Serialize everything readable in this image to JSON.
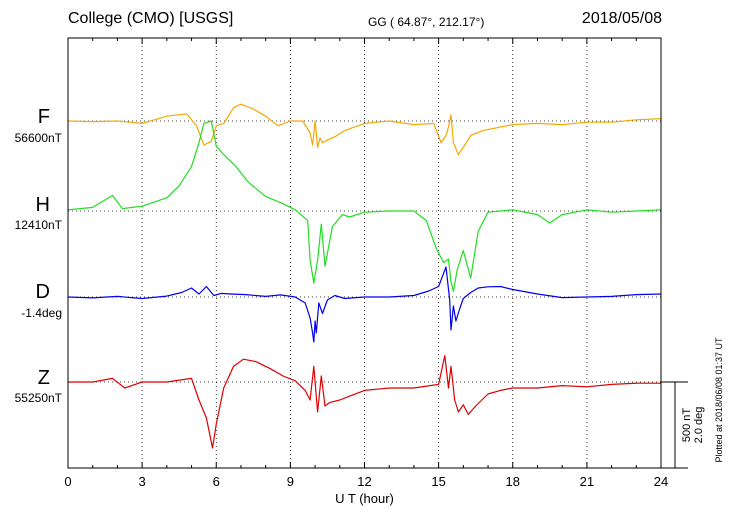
{
  "header": {
    "station": "College (CMO)  [USGS]",
    "coords": "GG ( 64.87°, 212.17°)",
    "date": "2018/05/08"
  },
  "footer": {
    "scale_nt": "500 nT",
    "scale_deg": "2.0 deg",
    "plotted": "Plotted at 2018/06/08 01:37 UT"
  },
  "chart_data": {
    "type": "line",
    "title": "College (CMO)  [USGS]",
    "xlabel": "U T (hour)",
    "ylabel": "",
    "xlim": [
      0,
      24
    ],
    "x_ticks": [
      "0",
      "3",
      "6",
      "9",
      "12",
      "15",
      "18",
      "21",
      "24"
    ],
    "grid": true,
    "scale_bar": "500 nT / 2.0 deg",
    "series": [
      {
        "name": "F",
        "baseline_label": "56600nT",
        "unit": "nT",
        "baseline": 56600,
        "color": "#f5a800",
        "x": [
          0,
          1,
          2,
          3,
          4,
          4.8,
          5.2,
          5.5,
          5.8,
          6.0,
          6.3,
          6.7,
          7.0,
          7.5,
          8.0,
          8.5,
          9.0,
          9.5,
          9.8,
          9.9,
          10.0,
          10.1,
          10.2,
          10.3,
          10.5,
          10.8,
          11.2,
          12,
          13,
          14,
          14.8,
          15.1,
          15.3,
          15.4,
          15.5,
          15.6,
          15.8,
          16.0,
          16.3,
          16.8,
          17.5,
          18,
          19,
          20,
          21,
          22,
          23,
          24
        ],
        "y": [
          56600,
          56595,
          56600,
          56580,
          56640,
          56660,
          56560,
          56400,
          56430,
          56560,
          56580,
          56710,
          56740,
          56700,
          56640,
          56560,
          56600,
          56600,
          56500,
          56400,
          56600,
          56380,
          56460,
          56420,
          56440,
          56470,
          56520,
          56580,
          56600,
          56570,
          56580,
          56420,
          56480,
          56550,
          56650,
          56420,
          56320,
          56380,
          56480,
          56520,
          56550,
          56570,
          56580,
          56570,
          56590,
          56590,
          56610,
          56620
        ]
      },
      {
        "name": "H",
        "baseline_label": "12410nT",
        "unit": "nT",
        "baseline": 12410,
        "color": "#22dd22",
        "x": [
          0,
          1,
          1.8,
          2.2,
          3,
          4,
          4.5,
          5,
          5.3,
          5.5,
          5.8,
          6.0,
          6.3,
          6.8,
          7.3,
          8,
          8.6,
          9.2,
          9.7,
          9.8,
          9.95,
          10.1,
          10.25,
          10.4,
          10.7,
          11.1,
          11.4,
          12,
          13,
          14,
          14.5,
          14.9,
          15.2,
          15.4,
          15.5,
          15.6,
          15.75,
          16.0,
          16.3,
          16.6,
          17,
          17.5,
          18,
          19,
          19.5,
          20,
          21,
          22,
          23,
          24
        ],
        "y": [
          12420,
          12440,
          12540,
          12430,
          12450,
          12520,
          12620,
          12780,
          12980,
          13140,
          13160,
          12950,
          12880,
          12780,
          12650,
          12530,
          12480,
          12420,
          12330,
          12000,
          11810,
          12000,
          12300,
          11950,
          12280,
          12380,
          12360,
          12400,
          12410,
          12410,
          12330,
          12100,
          11980,
          12010,
          11820,
          11740,
          11920,
          12080,
          11850,
          12240,
          12400,
          12410,
          12420,
          12380,
          12310,
          12380,
          12420,
          12400,
          12410,
          12420
        ]
      },
      {
        "name": "D",
        "baseline_label": "-1.4deg",
        "unit": "deg",
        "baseline": -1.4,
        "color": "#0000ee",
        "x": [
          0,
          1,
          2,
          3,
          4,
          4.6,
          5.0,
          5.3,
          5.6,
          5.9,
          6.2,
          6.6,
          7.2,
          8,
          8.6,
          9.2,
          9.6,
          9.8,
          9.9,
          9.95,
          10.0,
          10.05,
          10.15,
          10.3,
          10.5,
          10.8,
          11.2,
          12,
          13,
          14,
          14.6,
          15.0,
          15.3,
          15.45,
          15.5,
          15.6,
          15.7,
          15.85,
          16.0,
          16.3,
          16.6,
          17,
          17.5,
          18,
          19,
          20,
          21,
          22,
          23,
          24
        ],
        "y": [
          -1.4,
          -1.43,
          -1.38,
          -1.45,
          -1.37,
          -1.25,
          -1.1,
          -1.3,
          -1.05,
          -1.35,
          -1.28,
          -1.3,
          -1.32,
          -1.38,
          -1.33,
          -1.4,
          -1.6,
          -2.1,
          -2.6,
          -2.9,
          -2.2,
          -2.6,
          -1.6,
          -1.95,
          -1.5,
          -1.35,
          -1.45,
          -1.4,
          -1.4,
          -1.35,
          -1.2,
          -1.05,
          -0.4,
          -1.5,
          -2.5,
          -1.7,
          -2.2,
          -1.8,
          -1.45,
          -1.25,
          -1.1,
          -1.06,
          -1.05,
          -1.15,
          -1.3,
          -1.42,
          -1.4,
          -1.38,
          -1.32,
          -1.3
        ]
      },
      {
        "name": "Z",
        "baseline_label": "55250nT",
        "unit": "nT",
        "baseline": 55250,
        "color": "#dd0000",
        "x": [
          0,
          1,
          1.8,
          2.3,
          3,
          4,
          5.0,
          5.3,
          5.6,
          5.85,
          6.0,
          6.3,
          6.7,
          7.1,
          7.6,
          8.2,
          8.7,
          9.2,
          9.6,
          9.8,
          9.95,
          10.1,
          10.25,
          10.4,
          10.6,
          11,
          11.5,
          12,
          13,
          14,
          15.0,
          15.25,
          15.4,
          15.5,
          15.65,
          15.8,
          16.0,
          16.2,
          16.5,
          17,
          17.5,
          18,
          19,
          20,
          21,
          22,
          23,
          24
        ],
        "y": [
          55250,
          55250,
          55280,
          55200,
          55250,
          55250,
          55280,
          55100,
          54950,
          54700,
          54900,
          55200,
          55380,
          55440,
          55420,
          55360,
          55300,
          55260,
          55180,
          55100,
          55380,
          55000,
          55300,
          55050,
          55080,
          55100,
          55140,
          55180,
          55200,
          55200,
          55230,
          55470,
          55200,
          55380,
          55100,
          55000,
          55060,
          54980,
          55050,
          55150,
          55180,
          55200,
          55200,
          55220,
          55210,
          55230,
          55240,
          55240
        ]
      }
    ]
  }
}
